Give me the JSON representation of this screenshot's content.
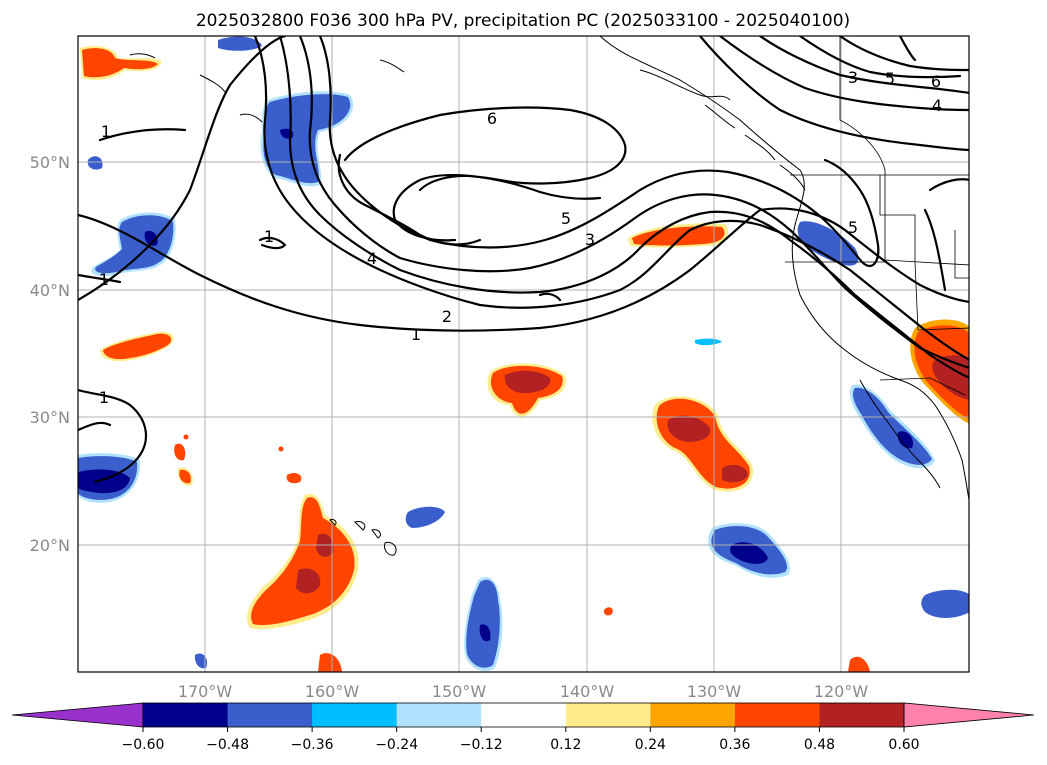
{
  "title": "2025032800 F036 300 hPa PV, precipitation PC (2025033100 - 2025040100)",
  "lat_labels": [
    "50°N",
    "40°N",
    "30°N",
    "20°N"
  ],
  "lon_labels": [
    "170°W",
    "160°W",
    "150°W",
    "140°W",
    "130°W",
    "120°W"
  ],
  "colorbar": {
    "ticks": [
      "−0.60",
      "−0.48",
      "−0.36",
      "−0.24",
      "−0.12",
      "0.12",
      "0.24",
      "0.36",
      "0.48",
      "0.60"
    ],
    "colors": [
      "#9932cc",
      "#00008b",
      "#3a5fcd",
      "#00bfff",
      "#b0e2ff",
      "#ffffff",
      "#ffec8b",
      "#ffa500",
      "#ff4500",
      "#b22222",
      "#ff82ab"
    ]
  },
  "contour_labels": [
    "1",
    "1",
    "1",
    "1",
    "2",
    "3",
    "3",
    "4",
    "4",
    "5",
    "5",
    "5",
    "6",
    "6",
    "3"
  ],
  "colors": {
    "positive_strong": "#b22222",
    "positive": "#ff4500",
    "positive_weak": "#ffa500",
    "positive_faint": "#ffec8b",
    "negative_strong": "#00008b",
    "negative": "#3a5fcd",
    "negative_weak": "#00bfff",
    "negative_faint": "#b0e2ff"
  }
}
